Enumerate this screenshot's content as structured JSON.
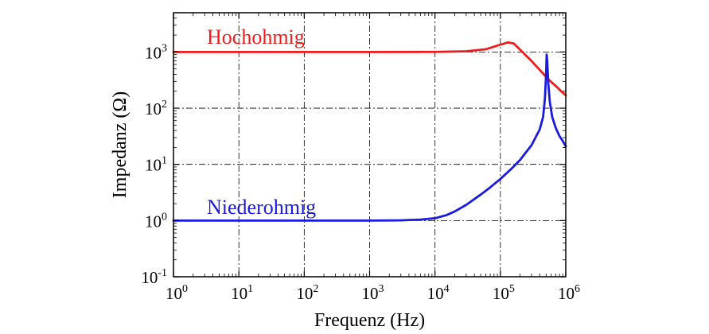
{
  "chart_data": {
    "type": "line",
    "xlabel": "Frequenz (Hz)",
    "ylabel": "Impedanz (Ω)",
    "x_scale": "log",
    "y_scale": "log",
    "xlim": [
      1,
      1000000
    ],
    "ylim": [
      0.1,
      5000
    ],
    "grid": true,
    "x_ticks": [
      {
        "base": "10",
        "exp": "0",
        "value": 1
      },
      {
        "base": "10",
        "exp": "1",
        "value": 10
      },
      {
        "base": "10",
        "exp": "2",
        "value": 100
      },
      {
        "base": "10",
        "exp": "3",
        "value": 1000
      },
      {
        "base": "10",
        "exp": "4",
        "value": 10000
      },
      {
        "base": "10",
        "exp": "5",
        "value": 100000
      },
      {
        "base": "10",
        "exp": "6",
        "value": 1000000
      }
    ],
    "y_ticks": [
      {
        "base": "10",
        "exp": "-1",
        "value": 0.1
      },
      {
        "base": "10",
        "exp": "0",
        "value": 1
      },
      {
        "base": "10",
        "exp": "1",
        "value": 10
      },
      {
        "base": "10",
        "exp": "2",
        "value": 100
      },
      {
        "base": "10",
        "exp": "3",
        "value": 1000
      }
    ],
    "series": [
      {
        "name": "Hochohmig",
        "color": "#ee1c1c",
        "x": [
          1,
          10,
          100,
          1000,
          10000,
          30000,
          60000,
          90000,
          130000,
          160000,
          200000,
          280000,
          400000,
          550000,
          700000,
          850000,
          1000000
        ],
        "y": [
          1000,
          1000,
          1000,
          1000,
          1005,
          1030,
          1120,
          1300,
          1480,
          1420,
          1100,
          750,
          480,
          320,
          250,
          200,
          170
        ]
      },
      {
        "name": "Niederohmig",
        "color": "#1a1ae0",
        "x": [
          1,
          10,
          100,
          1000,
          3000,
          6000,
          10000,
          15000,
          20000,
          30000,
          50000,
          70000,
          100000,
          150000,
          200000,
          300000,
          400000,
          450000,
          480000,
          500000,
          510000,
          520000,
          540000,
          570000,
          620000,
          700000,
          800000,
          900000,
          1000000
        ],
        "y": [
          1,
          1,
          1,
          1,
          1.01,
          1.04,
          1.1,
          1.25,
          1.45,
          1.9,
          2.9,
          3.9,
          5.5,
          8.5,
          12,
          22,
          42,
          70,
          150,
          400,
          900,
          700,
          280,
          130,
          70,
          45,
          32,
          26,
          21
        ]
      }
    ]
  }
}
